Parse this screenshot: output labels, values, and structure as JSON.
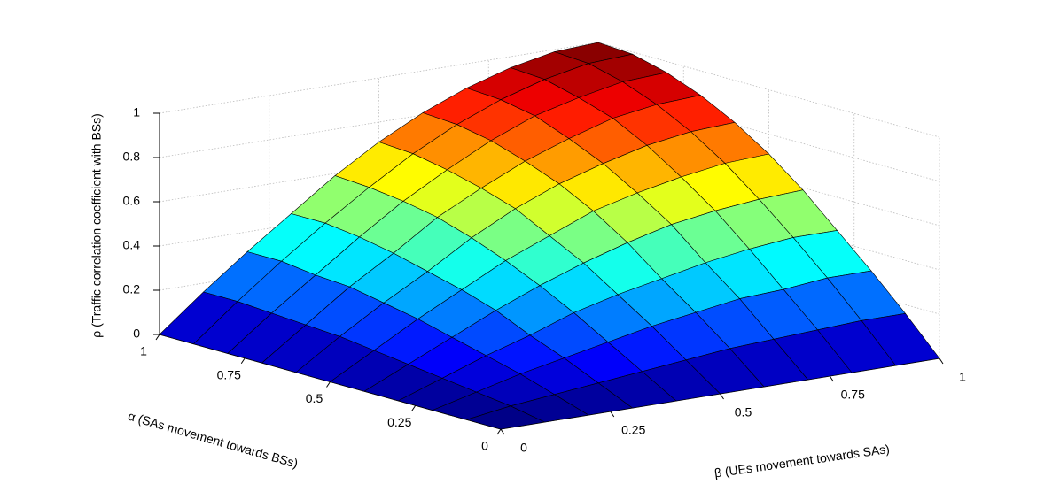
{
  "chart_data": {
    "type": "surface",
    "colormap": "jet",
    "x_label": "β (UEs movement towards SAs)",
    "y_label": "α (SAs movement towards BSs)",
    "z_label": "ρ (Traffic correlation coefficient with BSs)",
    "x": [
      0,
      0.1,
      0.2,
      0.3,
      0.4,
      0.5,
      0.6,
      0.7,
      0.8,
      0.9,
      1
    ],
    "y": [
      0,
      0.1,
      0.2,
      0.3,
      0.4,
      0.5,
      0.6,
      0.7,
      0.8,
      0.9,
      1
    ],
    "z": [
      [
        0,
        0,
        0,
        0,
        0,
        0,
        0,
        0,
        0,
        0,
        0
      ],
      [
        0,
        0.03,
        0.05,
        0.07,
        0.09,
        0.11,
        0.13,
        0.14,
        0.15,
        0.16,
        0.16
      ],
      [
        0,
        0.05,
        0.1,
        0.14,
        0.18,
        0.22,
        0.25,
        0.28,
        0.29,
        0.31,
        0.31
      ],
      [
        0,
        0.07,
        0.14,
        0.2,
        0.27,
        0.32,
        0.36,
        0.4,
        0.43,
        0.45,
        0.45
      ],
      [
        0,
        0.09,
        0.18,
        0.27,
        0.35,
        0.42,
        0.48,
        0.53,
        0.56,
        0.58,
        0.59
      ],
      [
        0,
        0.11,
        0.22,
        0.32,
        0.42,
        0.5,
        0.58,
        0.63,
        0.67,
        0.7,
        0.71
      ],
      [
        0,
        0.13,
        0.25,
        0.36,
        0.48,
        0.58,
        0.66,
        0.72,
        0.77,
        0.8,
        0.81
      ],
      [
        0,
        0.14,
        0.28,
        0.4,
        0.53,
        0.63,
        0.72,
        0.79,
        0.85,
        0.88,
        0.89
      ],
      [
        0,
        0.15,
        0.29,
        0.43,
        0.56,
        0.67,
        0.77,
        0.85,
        0.9,
        0.94,
        0.95
      ],
      [
        0,
        0.16,
        0.31,
        0.45,
        0.58,
        0.7,
        0.8,
        0.88,
        0.94,
        0.98,
        0.99
      ],
      [
        0,
        0.16,
        0.31,
        0.45,
        0.59,
        0.71,
        0.81,
        0.89,
        0.95,
        0.99,
        1
      ]
    ],
    "xlim": [
      0,
      1
    ],
    "xticks": [
      0,
      0.25,
      0.5,
      0.75,
      1
    ],
    "ylim": [
      0,
      1
    ],
    "yticks": [
      0,
      0.25,
      0.5,
      0.75,
      1
    ],
    "zlim": [
      0,
      1
    ],
    "zticks": [
      0,
      0.2,
      0.4,
      0.6,
      0.8,
      1
    ],
    "grid": true
  }
}
